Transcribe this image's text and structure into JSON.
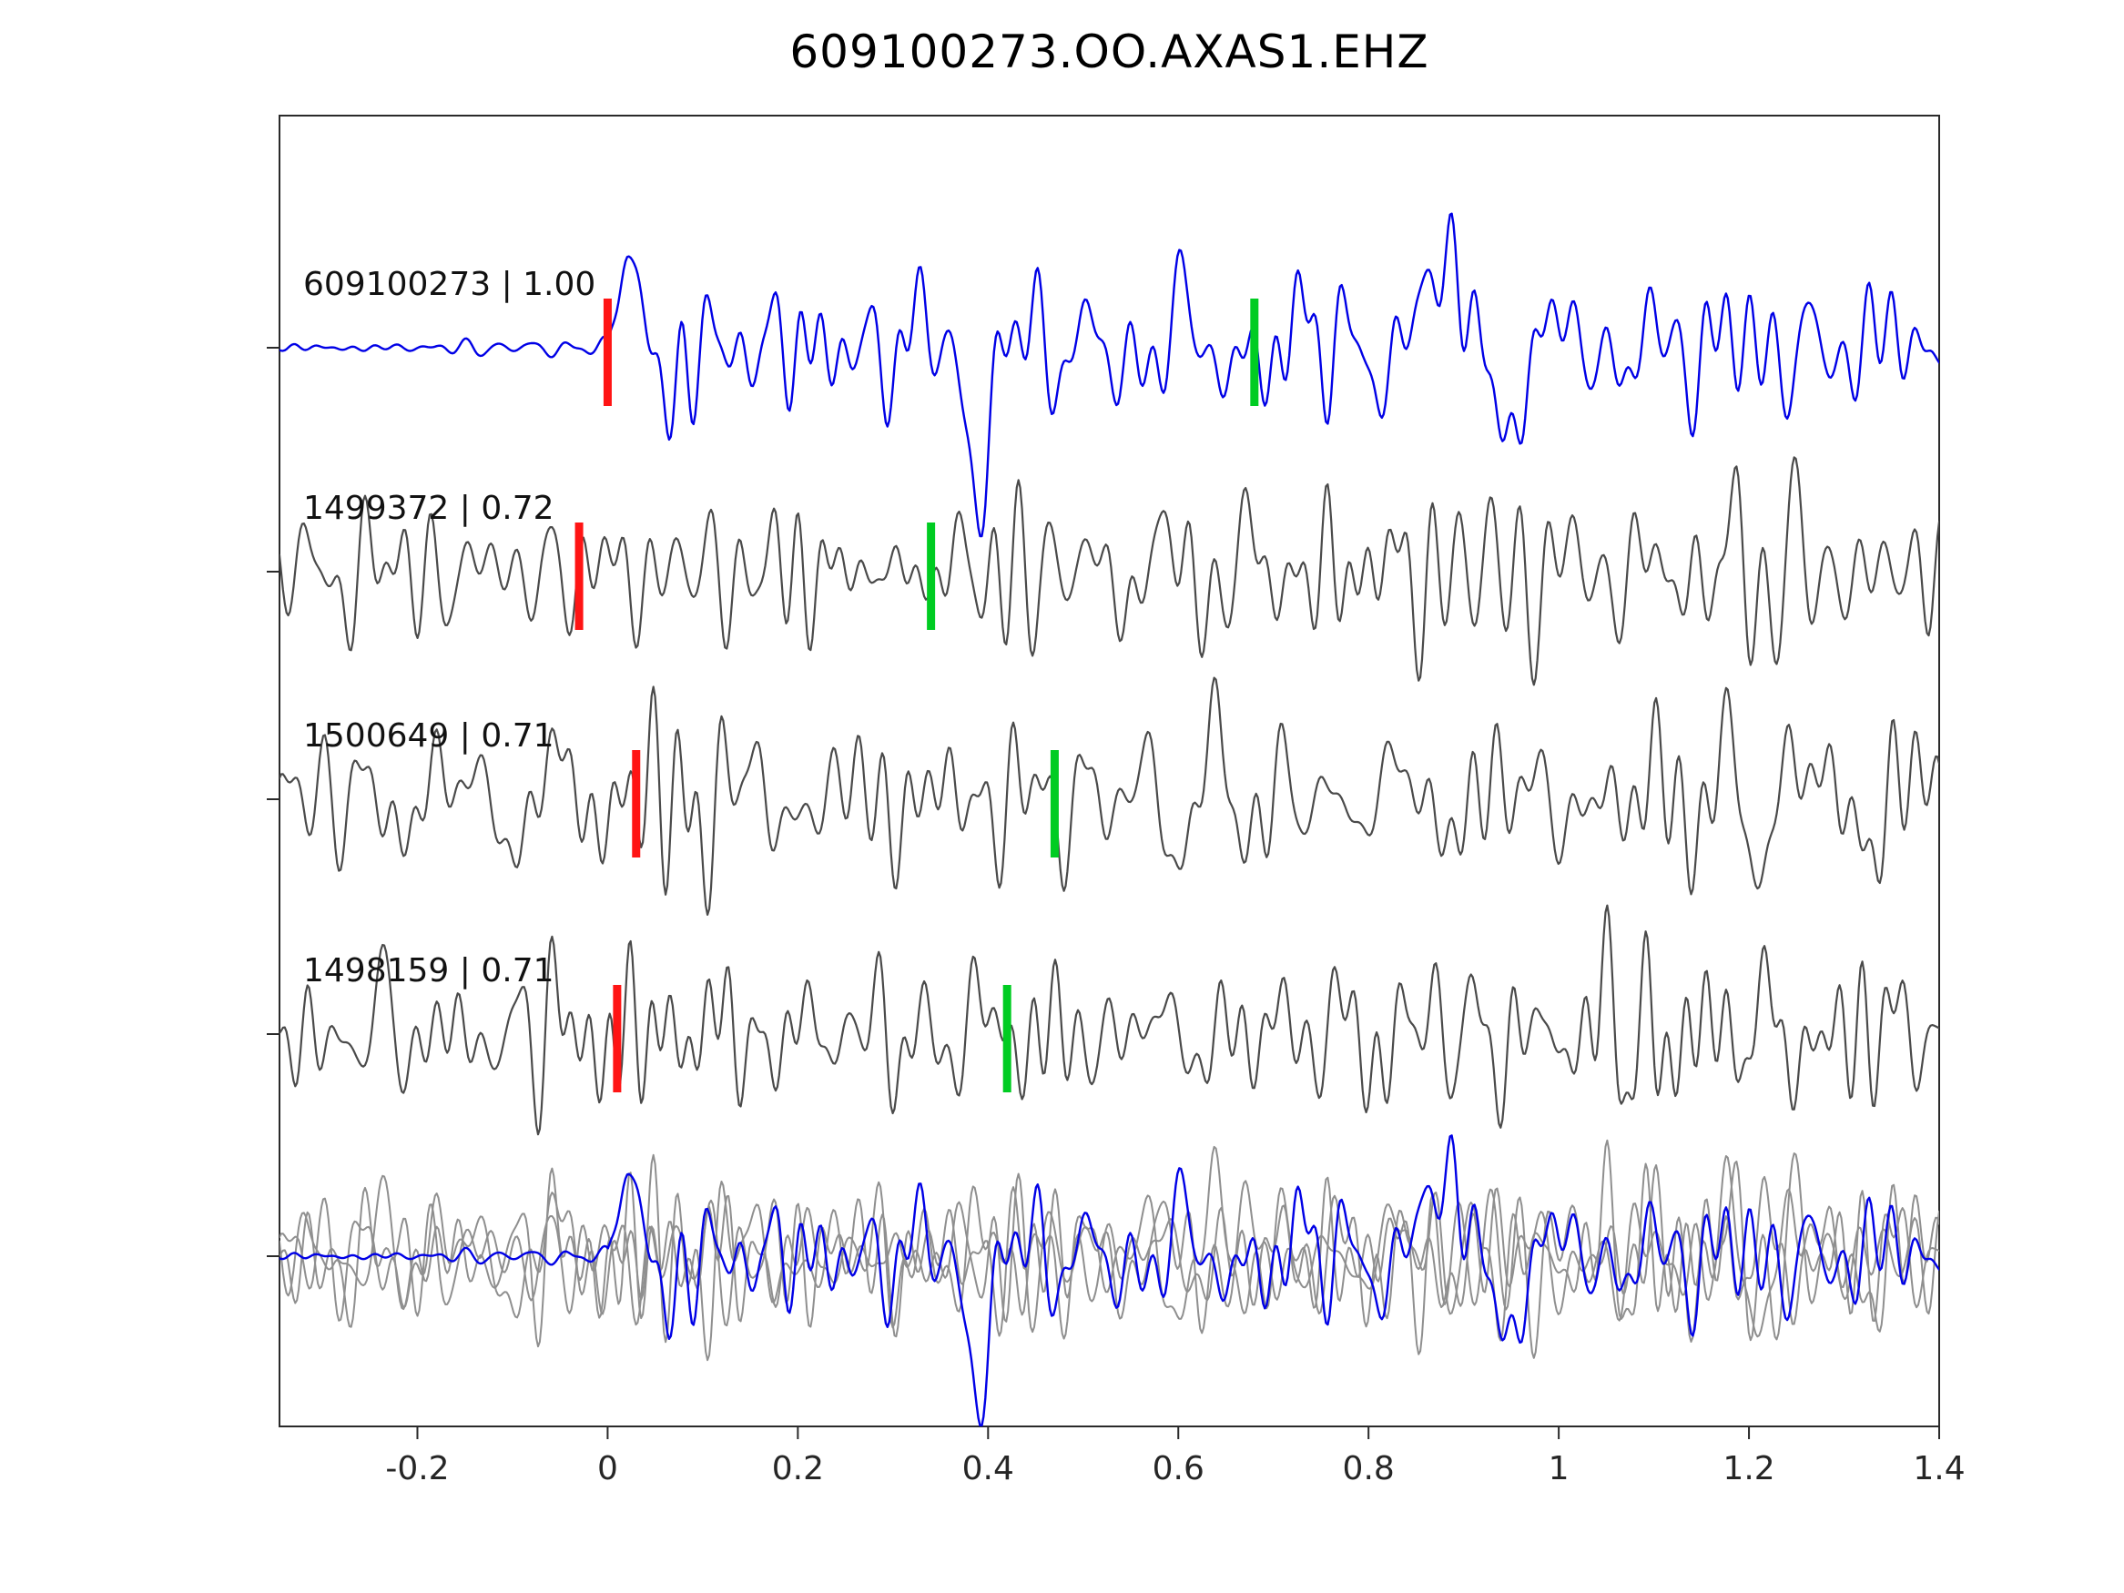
{
  "title": "609100273.OO.AXAS1.EHZ",
  "header": {
    "template_id": "609100273",
    "network": "OO",
    "station": "AXAS1",
    "channel": "EHZ"
  },
  "chart_data": {
    "type": "line",
    "title": "609100273.OO.AXAS1.EHZ",
    "xlabel": "",
    "ylabel": "",
    "xlim": [
      -0.345,
      1.4
    ],
    "x_ticks": [
      -0.2,
      0,
      0.2,
      0.4,
      0.6,
      0.8,
      1,
      1.2,
      1.4
    ],
    "x_tick_labels": [
      "-0.2",
      "0",
      "0.2",
      "0.4",
      "0.6",
      "0.8",
      "1",
      "1.2",
      "1.4"
    ],
    "grid": false,
    "legend": "none",
    "rows": 5,
    "traces": [
      {
        "event_id": "609100273",
        "correlation": 1.0,
        "label": "609100273 | 1.00",
        "color": "#0000e6",
        "role": "template",
        "red_pick_x": 0.0,
        "green_pick_x": 0.68
      },
      {
        "event_id": "1499372",
        "correlation": 0.72,
        "label": "1499372 | 0.72",
        "color": "#4a4a4a",
        "role": "detection",
        "red_pick_x": -0.03,
        "green_pick_x": 0.34
      },
      {
        "event_id": "1500649",
        "correlation": 0.71,
        "label": "1500649 | 0.71",
        "color": "#4a4a4a",
        "role": "detection",
        "red_pick_x": 0.03,
        "green_pick_x": 0.47
      },
      {
        "event_id": "1498159",
        "correlation": 0.71,
        "label": "1498159 | 0.71",
        "color": "#4a4a4a",
        "role": "detection",
        "red_pick_x": 0.01,
        "green_pick_x": 0.42
      }
    ],
    "overlay_row": {
      "description": "all detection traces overlaid in gray with the template trace in blue",
      "gray_color": "#8f8f8f",
      "template_color": "#0000e6"
    },
    "marker_colors": {
      "red": "#ff1414",
      "green": "#00cc22"
    },
    "axis_color": "#2a2a2a"
  }
}
